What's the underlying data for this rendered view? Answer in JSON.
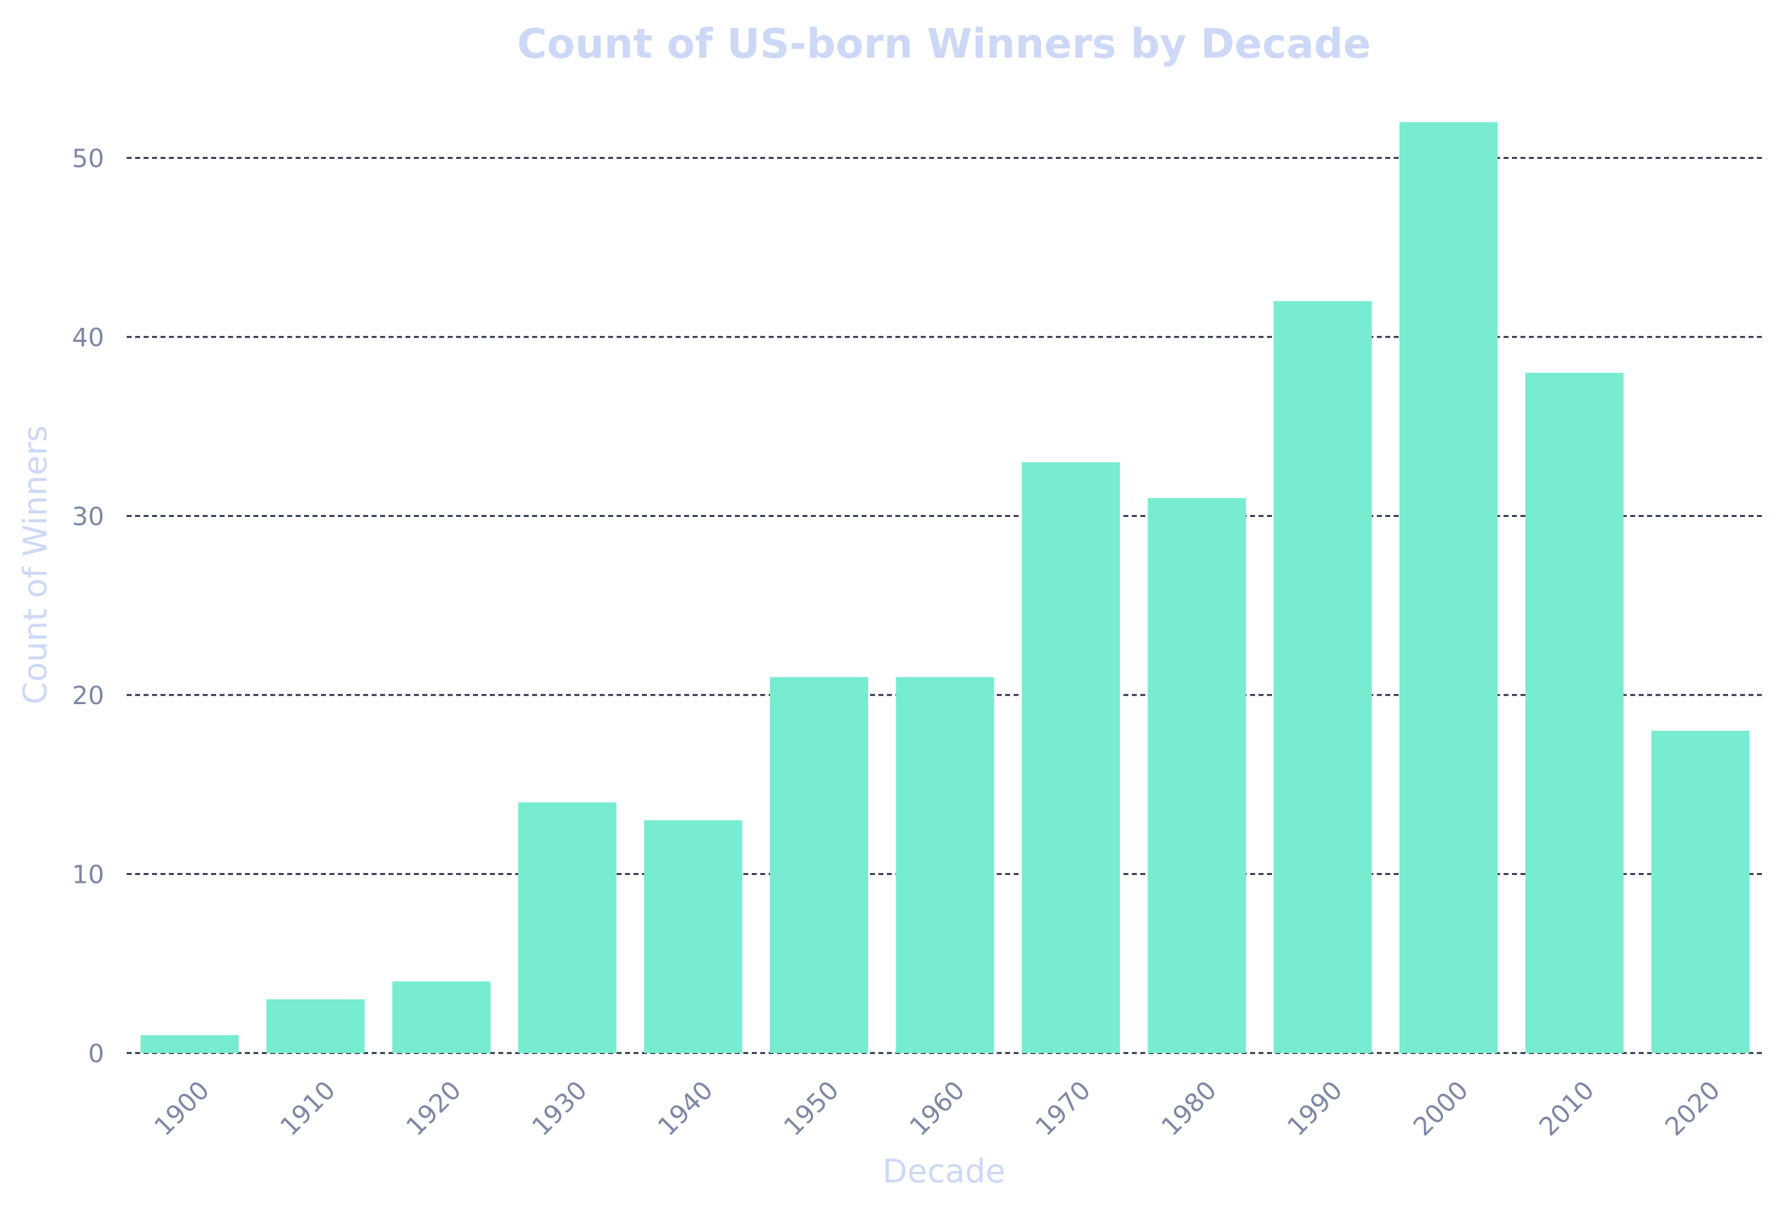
{
  "colors": {
    "bar": "#77ecd1",
    "title": "#cdd8f6",
    "axis_label": "#cdd8f6",
    "tick_label": "#7d87a3",
    "grid": "#1f2740",
    "background": "#ffffff"
  },
  "chart_data": {
    "type": "bar",
    "title": "Count of US-born Winners by Decade",
    "xlabel": "Decade",
    "ylabel": "Count of Winners",
    "categories": [
      "1900",
      "1910",
      "1920",
      "1930",
      "1940",
      "1950",
      "1960",
      "1970",
      "1980",
      "1990",
      "2000",
      "2010",
      "2020"
    ],
    "values": [
      1,
      3,
      4,
      14,
      13,
      21,
      21,
      33,
      31,
      42,
      52,
      38,
      18
    ],
    "ylim": [
      0,
      55
    ],
    "yticks": [
      0,
      10,
      20,
      30,
      40,
      50
    ],
    "grid": "horizontal dashed",
    "legend": "none"
  }
}
